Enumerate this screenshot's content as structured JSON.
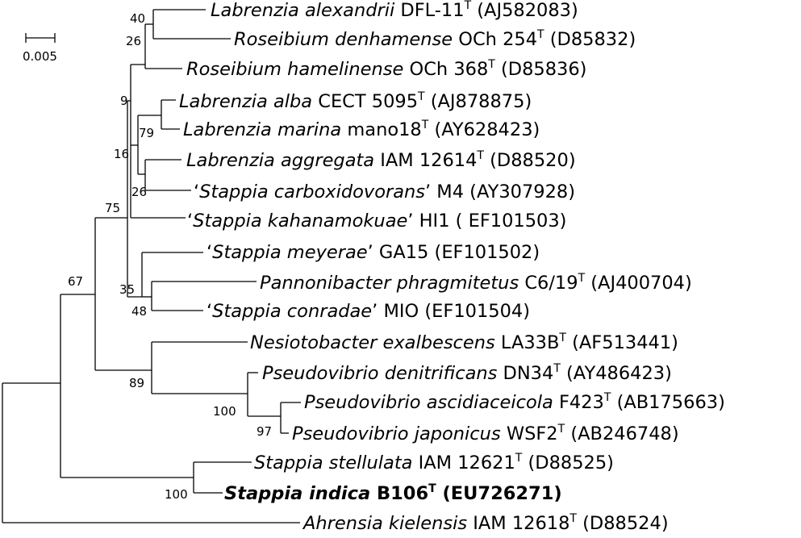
{
  "scale_bar": {
    "label": "0.005"
  },
  "leaves": [
    {
      "genus_species": "Labrenzia alexandrii",
      "strain": "DFL-11",
      "type_strain": true,
      "accession": "(AJ582083)",
      "bold": false,
      "quoted": false
    },
    {
      "genus_species": "Roseibium denhamense",
      "strain": "OCh 254",
      "type_strain": true,
      "accession": "(D85832)",
      "bold": false,
      "quoted": false
    },
    {
      "genus_species": "Roseibium hamelinense",
      "strain": "OCh 368",
      "type_strain": true,
      "accession": "(D85836)",
      "bold": false,
      "quoted": false
    },
    {
      "genus_species": "Labrenzia alba",
      "strain": "CECT 5095",
      "type_strain": true,
      "accession": "(AJ878875)",
      "bold": false,
      "quoted": false
    },
    {
      "genus_species": "Labrenzia marina",
      "strain": "mano18",
      "type_strain": true,
      "accession": "(AY628423)",
      "bold": false,
      "quoted": false
    },
    {
      "genus_species": "Labrenzia aggregata",
      "strain": "IAM 12614",
      "type_strain": true,
      "accession": "(D88520)",
      "bold": false,
      "quoted": false
    },
    {
      "genus_species": "Stappia carboxidovorans",
      "strain": "M4",
      "type_strain": false,
      "accession": "(AY307928)",
      "bold": false,
      "quoted": true
    },
    {
      "genus_species": "Stappia kahanamokuae",
      "strain": "HI1",
      "type_strain": false,
      "accession": "( EF101503)",
      "bold": false,
      "quoted": true
    },
    {
      "genus_species": "Stappia meyerae",
      "strain": "GA15",
      "type_strain": false,
      "accession": "(EF101502)",
      "bold": false,
      "quoted": true
    },
    {
      "genus_species": "Pannonibacter phragmitetus",
      "strain": "C6/19",
      "type_strain": true,
      "accession": "(AJ400704)",
      "bold": false,
      "quoted": false
    },
    {
      "genus_species": "Stappia conradae",
      "strain": "MIO",
      "type_strain": false,
      "accession": "(EF101504)",
      "bold": false,
      "quoted": true
    },
    {
      "genus_species": "Nesiotobacter exalbescens",
      "strain": "LA33B",
      "type_strain": true,
      "accession": "(AF513441)",
      "bold": false,
      "quoted": false
    },
    {
      "genus_species": "Pseudovibrio denitrificans",
      "strain": "DN34",
      "type_strain": true,
      "accession": "(AY486423)",
      "bold": false,
      "quoted": false
    },
    {
      "genus_species": "Pseudovibrio ascidiaceicola",
      "strain": "F423",
      "type_strain": true,
      "accession": "(AB175663)",
      "bold": false,
      "quoted": false
    },
    {
      "genus_species": "Pseudovibrio japonicus",
      "strain": "WSF2",
      "type_strain": true,
      "accession": "(AB246748)",
      "bold": false,
      "quoted": false
    },
    {
      "genus_species": "Stappia stellulata",
      "strain": "IAM 12621",
      "type_strain": true,
      "accession": "(D88525)",
      "bold": false,
      "quoted": false
    },
    {
      "genus_species": "Stappia indica",
      "strain": "B106",
      "type_strain": true,
      "accession": "(EU726271)",
      "bold": true,
      "quoted": false
    },
    {
      "genus_species": "Ahrensia kielensis",
      "strain": "IAM 12618",
      "type_strain": true,
      "accession": "(D88524)",
      "bold": false,
      "quoted": false
    }
  ],
  "type_superscript": "T",
  "bootstrap_values": [
    "40",
    "26",
    "9",
    "79",
    "16",
    "26",
    "75",
    "35",
    "48",
    "67",
    "89",
    "100",
    "97",
    "100"
  ]
}
